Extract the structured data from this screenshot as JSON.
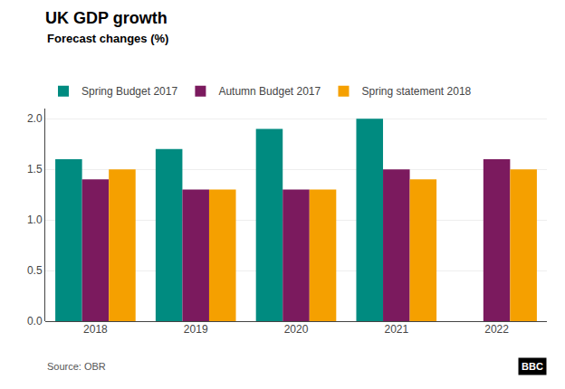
{
  "chart_data": {
    "type": "bar",
    "title": "UK GDP growth",
    "subtitle": "Forecast changes (%)",
    "annotations": [
      "Source: OBR",
      "BBC"
    ],
    "categories": [
      "2018",
      "2019",
      "2020",
      "2021",
      "2022"
    ],
    "series": [
      {
        "name": "Spring Budget 2017",
        "color": "#008B80",
        "values": [
          1.6,
          1.7,
          1.9,
          2.0,
          null
        ]
      },
      {
        "name": "Autumn Budget 2017",
        "color": "#7B1A5E",
        "values": [
          1.4,
          1.3,
          1.3,
          1.5,
          1.6
        ]
      },
      {
        "name": "Spring statement 2018",
        "color": "#F5A000",
        "values": [
          1.5,
          1.3,
          1.3,
          1.4,
          1.5
        ]
      }
    ],
    "ylim": [
      0,
      2.1
    ],
    "yticks": [
      {
        "value": 0,
        "label": "0.0"
      },
      0.5,
      {
        "value": 1,
        "label": "1.0"
      },
      1.5,
      {
        "value": 2,
        "label": "2.0"
      }
    ],
    "grid": true,
    "legend": "top left"
  }
}
